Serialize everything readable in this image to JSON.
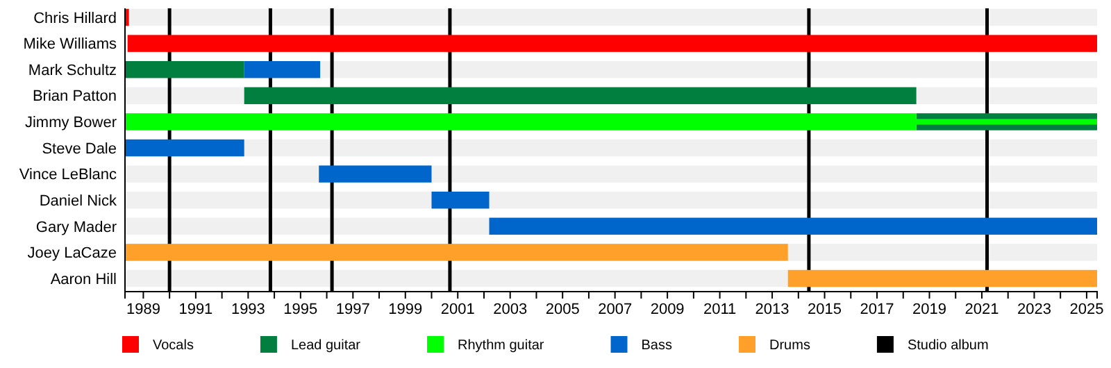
{
  "chart_data": {
    "type": "bar",
    "orientation": "horizontal",
    "categories": [
      "Chris Hillard",
      "Mike Williams",
      "Mark Schultz",
      "Brian Patton",
      "Jimmy Bower",
      "Steve Dale",
      "Vince LeBlanc",
      "Daniel Nick",
      "Gary Mader",
      "Joey LaCaze",
      "Aaron Hill"
    ],
    "series": [
      {
        "name": "Vocals",
        "color": "#ff0000",
        "base": [
          1988.3,
          1988.4,
          null,
          null,
          null,
          null,
          null,
          null,
          null,
          null,
          null
        ],
        "values": [
          0.15,
          37.0,
          null,
          null,
          null,
          null,
          null,
          null,
          null,
          null,
          null
        ]
      },
      {
        "name": "Lead guitar",
        "color": "#007f3f",
        "base": [
          null,
          null,
          1988.3,
          1992.85,
          2018.5,
          null,
          null,
          null,
          null,
          null,
          null
        ],
        "values": [
          null,
          null,
          4.55,
          25.65,
          6.9,
          null,
          null,
          null,
          null,
          null,
          null
        ]
      },
      {
        "name": "Rhythm guitar",
        "color": "#00ff00",
        "base": [
          null,
          null,
          null,
          null,
          1988.3,
          null,
          null,
          null,
          null,
          null,
          null
        ],
        "values": [
          null,
          null,
          null,
          null,
          30.2,
          null,
          null,
          null,
          null,
          null,
          null
        ]
      },
      {
        "name": "Bass",
        "color": "#0066cc",
        "base": [
          null,
          null,
          1992.85,
          null,
          null,
          1988.3,
          1995.7,
          2000.0,
          2002.2,
          null,
          null
        ],
        "values": [
          null,
          null,
          2.9,
          null,
          null,
          4.55,
          4.3,
          2.2,
          23.2,
          null,
          null
        ]
      },
      {
        "name": "Drums",
        "color": "#ffa02a",
        "base": [
          null,
          null,
          null,
          null,
          null,
          null,
          null,
          null,
          null,
          1988.3,
          2013.6
        ],
        "values": [
          null,
          null,
          null,
          null,
          null,
          null,
          null,
          null,
          null,
          25.3,
          11.8
        ]
      },
      {
        "color": "#00ff00",
        "base": [
          null,
          null,
          null,
          null,
          2018.5,
          null,
          null,
          null,
          null,
          null,
          null
        ],
        "values": [
          null,
          null,
          null,
          null,
          6.9,
          null,
          null,
          null,
          null,
          null,
          null
        ]
      }
    ],
    "ref_lines": [
      {
        "axis": "x",
        "value": 1990.0,
        "color": "#000000",
        "label": "Studio album"
      },
      {
        "axis": "x",
        "value": 1993.85,
        "color": "#000000"
      },
      {
        "axis": "x",
        "value": 1996.2,
        "color": "#000000"
      },
      {
        "axis": "x",
        "value": 2000.7,
        "color": "#000000"
      },
      {
        "axis": "x",
        "value": 2014.4,
        "color": "#000000"
      },
      {
        "axis": "x",
        "value": 2021.2,
        "color": "#000000"
      }
    ],
    "xlim": [
      1988.3,
      2025.4
    ],
    "xticks": [
      1989,
      {
        "value": 1990,
        "label": null
      },
      1991,
      {
        "value": 1992,
        "label": null
      },
      1993,
      {
        "value": 1994,
        "label": null
      },
      1995,
      {
        "value": 1996,
        "label": null
      },
      1997,
      {
        "value": 1998,
        "label": null
      },
      1999,
      {
        "value": 2000,
        "label": null
      },
      2001,
      {
        "value": 2002,
        "label": null
      },
      2003,
      {
        "value": 2004,
        "label": null
      },
      2005,
      {
        "value": 2006,
        "label": null
      },
      2007,
      {
        "value": 2008,
        "label": null
      },
      2009,
      {
        "value": 2010,
        "label": null
      },
      2011,
      {
        "value": 2012,
        "label": null
      },
      2013,
      {
        "value": 2014,
        "label": null
      },
      2015,
      {
        "value": 2016,
        "label": null
      },
      2017,
      {
        "value": 2018,
        "label": null
      },
      2019,
      {
        "value": 2020,
        "label": null
      },
      2021,
      {
        "value": 2022,
        "label": null
      },
      2023,
      {
        "value": 2024,
        "label": null
      },
      2025
    ],
    "legend": "bottom"
  }
}
